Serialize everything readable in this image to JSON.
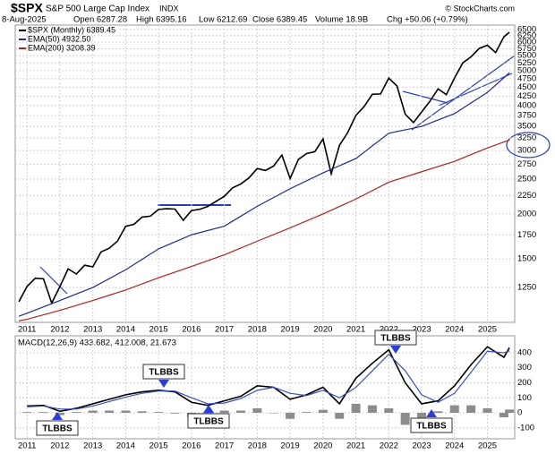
{
  "chart_data": [
    {
      "type": "line",
      "title": "$SPX",
      "subtitle": "S&P 500 Large Cap Index",
      "exchange": "INDX",
      "source": "© StockCharts.com",
      "date": "8-Aug-2025",
      "quote": [
        "Open 6287.28",
        "High 6395.16",
        "Low 6212.69",
        "Close 6389.45",
        "Volume 18.9B",
        "Chg +50.06 (+0.79%)"
      ],
      "log": true,
      "grid": true,
      "legend": "top-left",
      "xlim": [
        2010.64,
        2025.83
      ],
      "xticks": [
        2011,
        2012,
        2013,
        2014,
        2015,
        2016,
        2017,
        2018,
        2019,
        2020,
        2021,
        2022,
        2023,
        2024,
        2025
      ],
      "ylim": [
        1000,
        6690
      ],
      "yticks": [
        1250,
        1500,
        1750,
        2000,
        2250,
        2500,
        2750,
        3000,
        3250,
        3500,
        3750,
        4000,
        4250,
        4500,
        4750,
        5000,
        5250,
        5500,
        5750,
        6000,
        6250,
        6500
      ],
      "series": [
        {
          "name": "$SPX (Monthly) 6389.45",
          "color": "#000000",
          "x": [
            2010.75,
            2011.0,
            2011.25,
            2011.5,
            2011.75,
            2012.0,
            2012.25,
            2012.5,
            2012.75,
            2013.0,
            2013.25,
            2013.5,
            2013.75,
            2014.0,
            2014.25,
            2014.5,
            2014.75,
            2015.0,
            2015.25,
            2015.5,
            2015.75,
            2016.0,
            2016.25,
            2016.5,
            2016.75,
            2017.0,
            2017.25,
            2017.5,
            2017.75,
            2018.0,
            2018.25,
            2018.5,
            2018.75,
            2019.0,
            2019.25,
            2019.5,
            2019.75,
            2020.0,
            2020.25,
            2020.5,
            2020.75,
            2021.0,
            2021.25,
            2021.5,
            2021.75,
            2022.0,
            2022.25,
            2022.5,
            2022.75,
            2023.0,
            2023.25,
            2023.5,
            2023.75,
            2024.0,
            2024.25,
            2024.5,
            2024.75,
            2025.0,
            2025.25,
            2025.5,
            2025.67
          ],
          "values": [
            1141,
            1258,
            1326,
            1321,
            1131,
            1258,
            1408,
            1362,
            1441,
            1426,
            1569,
            1606,
            1682,
            1848,
            1872,
            1960,
            1972,
            2059,
            2068,
            2063,
            1920,
            2044,
            2060,
            2099,
            2168,
            2239,
            2363,
            2423,
            2519,
            2674,
            2641,
            2718,
            2914,
            2507,
            2834,
            2942,
            2977,
            3231,
            2585,
            3100,
            3363,
            3756,
            3973,
            4298,
            4308,
            4766,
            4530,
            3785,
            3586,
            3840,
            4109,
            4450,
            4288,
            4770,
            5254,
            5460,
            5762,
            5882,
            5612,
            6205,
            6389.45
          ]
        },
        {
          "name": "EMA(50) 4932.50",
          "color": "#1f2d8a",
          "x": [
            2010.75,
            2011,
            2012,
            2013,
            2014,
            2015,
            2016,
            2017,
            2018,
            2019,
            2020,
            2021,
            2022,
            2023,
            2024,
            2025,
            2025.67
          ],
          "values": [
            1040,
            1060,
            1150,
            1250,
            1400,
            1600,
            1750,
            1850,
            2100,
            2350,
            2600,
            2850,
            3350,
            3500,
            3800,
            4350,
            4932.5
          ]
        },
        {
          "name": "EMA(200) 3208.39",
          "color": "#b22222",
          "x": [
            2010.75,
            2011,
            2012,
            2013,
            2014,
            2015,
            2016,
            2017,
            2018,
            2019,
            2020,
            2021,
            2022,
            2023,
            2024,
            2025,
            2025.67
          ],
          "values": [
            1010,
            1020,
            1080,
            1150,
            1230,
            1330,
            1430,
            1540,
            1680,
            1830,
            2000,
            2200,
            2450,
            2620,
            2800,
            3050,
            3208.39
          ]
        }
      ]
    },
    {
      "type": "macd",
      "title": "MACD(12,26,9) 433.682, 412.008, 21.673",
      "grid": true,
      "xlim": [
        2010.64,
        2025.83
      ],
      "xticks": [
        2011,
        2012,
        2013,
        2014,
        2015,
        2016,
        2017,
        2018,
        2019,
        2020,
        2021,
        2022,
        2023,
        2024,
        2025
      ],
      "ylim": [
        -173,
        513
      ],
      "yticks": [
        -100,
        0,
        100,
        200,
        300,
        400
      ],
      "annotations": [
        "TLBBS",
        "TLBBS",
        "TLBBS",
        "TLBBS",
        "TLBBS"
      ],
      "series": [
        {
          "style": "bar",
          "color": "#8c8c8c",
          "x": [
            2011,
            2011.5,
            2012,
            2012.5,
            2013,
            2013.5,
            2014,
            2014.5,
            2015,
            2015.5,
            2016,
            2016.5,
            2017,
            2017.5,
            2018,
            2018.5,
            2019,
            2019.5,
            2020,
            2020.5,
            2021,
            2021.5,
            2022,
            2022.5,
            2023,
            2023.5,
            2024,
            2024.5,
            2025,
            2025.5,
            2025.67
          ],
          "values": [
            5,
            5,
            -15,
            5,
            15,
            15,
            15,
            10,
            5,
            -5,
            -30,
            -10,
            15,
            15,
            30,
            0,
            -40,
            5,
            20,
            -40,
            60,
            50,
            30,
            -80,
            -60,
            10,
            50,
            50,
            30,
            -30,
            21.673
          ]
        },
        {
          "style": "line",
          "color": "#000000",
          "x": [
            2011,
            2011.5,
            2012,
            2012.5,
            2013,
            2013.5,
            2014,
            2014.5,
            2015,
            2015.5,
            2016,
            2016.5,
            2017,
            2017.5,
            2018,
            2018.5,
            2019,
            2019.5,
            2020,
            2020.5,
            2021,
            2021.5,
            2022,
            2022.5,
            2023,
            2023.5,
            2024,
            2024.5,
            2025,
            2025.5,
            2025.67
          ],
          "values": [
            45,
            50,
            10,
            30,
            60,
            90,
            120,
            140,
            150,
            140,
            70,
            50,
            80,
            110,
            180,
            170,
            90,
            120,
            170,
            60,
            230,
            330,
            420,
            200,
            60,
            80,
            180,
            320,
            440,
            370,
            433.682
          ]
        },
        {
          "style": "line",
          "color": "#3a4fc0",
          "x": [
            2011,
            2011.5,
            2012,
            2012.5,
            2013,
            2013.5,
            2014,
            2014.5,
            2015,
            2015.5,
            2016,
            2016.5,
            2017,
            2017.5,
            2018,
            2018.5,
            2019,
            2019.5,
            2020,
            2020.5,
            2021,
            2021.5,
            2022,
            2022.5,
            2023,
            2023.5,
            2024,
            2024.5,
            2025,
            2025.5,
            2025.67
          ],
          "values": [
            40,
            45,
            25,
            25,
            45,
            75,
            105,
            130,
            145,
            145,
            100,
            60,
            65,
            95,
            150,
            170,
            130,
            115,
            150,
            100,
            170,
            280,
            390,
            280,
            120,
            70,
            130,
            270,
            410,
            400,
            412.008
          ]
        }
      ]
    }
  ]
}
